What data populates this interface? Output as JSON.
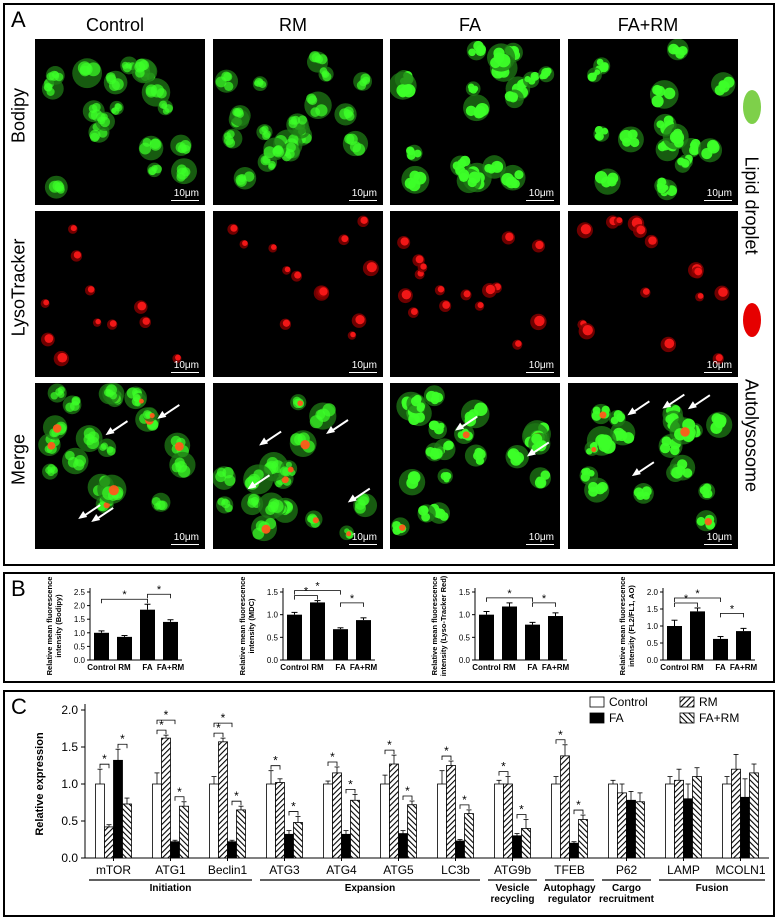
{
  "panelA": {
    "label": "A",
    "columns": [
      "Control",
      "RM",
      "FA",
      "FA+RM"
    ],
    "rows": [
      "Bodipy",
      "LysoTracker",
      "Merge"
    ],
    "scale_bar": "10μm",
    "legend": {
      "lipid": "Lipid droplet",
      "auto": "Autolysosome",
      "lipid_color": "#7ed04a",
      "auto_color": "#e60000"
    }
  },
  "panelB": {
    "label": "B",
    "charts": [
      {
        "ylabel": "Relative mean fluorescence intensity (Bodipy)"
      },
      {
        "ylabel": "Relative mean fluorescence intensity (MDC)"
      },
      {
        "ylabel": "Relative mean fluorescence intensity (Lyso-Tracker Red)"
      },
      {
        "ylabel": "Relative mean fluorescence intensity (FL2/FL1, AO)"
      }
    ]
  },
  "panelC": {
    "label": "C",
    "ylabel": "Relative expression",
    "groups": [
      {
        "name": "Initiation"
      },
      {
        "name": "Expansion"
      },
      {
        "name": "Vesicle recycling"
      },
      {
        "name": "Autophagy regulator"
      },
      {
        "name": "Cargo recruitment"
      },
      {
        "name": "Fusion"
      }
    ]
  },
  "chart_data": [
    {
      "type": "bar",
      "categories": [
        "Control",
        "RM",
        "FA",
        "FA+RM"
      ],
      "values": [
        1.0,
        0.85,
        1.85,
        1.4
      ],
      "errors": [
        0.07,
        0.05,
        0.2,
        0.08
      ],
      "ylabel": "Relative mean fluorescence intensity (Bodipy)",
      "ylim": [
        0,
        2.5
      ],
      "yticks": [
        "0.0",
        "0.5",
        "1.0",
        "1.5",
        "2.0",
        "2.5"
      ],
      "significance": [
        [
          "Control",
          "FA",
          "*"
        ],
        [
          "FA",
          "FA+RM",
          "*"
        ]
      ]
    },
    {
      "type": "bar",
      "categories": [
        "Control",
        "RM",
        "FA",
        "FA+RM"
      ],
      "values": [
        1.0,
        1.27,
        0.68,
        0.88
      ],
      "errors": [
        0.05,
        0.04,
        0.03,
        0.05
      ],
      "ylabel": "Relative mean fluorescence intensity (MDC)",
      "ylim": [
        0,
        1.5
      ],
      "yticks": [
        "0.0",
        "0.5",
        "1.0",
        "1.5"
      ],
      "significance": [
        [
          "Control",
          "RM",
          "*"
        ],
        [
          "Control",
          "FA",
          "*"
        ],
        [
          "FA",
          "FA+RM",
          "*"
        ]
      ]
    },
    {
      "type": "bar",
      "categories": [
        "Control",
        "RM",
        "FA",
        "FA+RM"
      ],
      "values": [
        1.0,
        1.18,
        0.78,
        0.97
      ],
      "errors": [
        0.07,
        0.08,
        0.05,
        0.07
      ],
      "ylabel": "Relative mean fluorescence intensity (Lyso-Tracker Red)",
      "ylim": [
        0,
        1.5
      ],
      "yticks": [
        "0.0",
        "0.5",
        "1.0",
        "1.5"
      ],
      "significance": [
        [
          "Control",
          "FA",
          "*"
        ],
        [
          "FA",
          "FA+RM",
          "*"
        ]
      ]
    },
    {
      "type": "bar",
      "categories": [
        "Control",
        "RM",
        "FA",
        "FA+RM"
      ],
      "values": [
        1.0,
        1.43,
        0.62,
        0.85
      ],
      "errors": [
        0.17,
        0.1,
        0.07,
        0.08
      ],
      "ylabel": "Relative mean fluorescence intensity (FL2/FL1, AO)",
      "ylim": [
        0,
        2.0
      ],
      "yticks": [
        "0.0",
        "0.5",
        "1.0",
        "1.5",
        "2.0"
      ],
      "significance": [
        [
          "Control",
          "RM",
          "*"
        ],
        [
          "Control",
          "FA",
          "*"
        ],
        [
          "FA",
          "FA+RM",
          "*"
        ]
      ]
    },
    {
      "type": "bar",
      "categories": [
        "mTOR",
        "ATG1",
        "Beclin1",
        "ATG3",
        "ATG4",
        "ATG5",
        "LC3b",
        "ATG9b",
        "TFEB",
        "P62",
        "LAMP",
        "MCOLN1"
      ],
      "series": [
        {
          "name": "Control",
          "values": [
            1.0,
            1.0,
            1.0,
            1.0,
            1.0,
            1.0,
            1.0,
            1.0,
            1.0,
            1.0,
            1.0,
            1.0
          ],
          "errors": [
            0.2,
            0.15,
            0.1,
            0.18,
            0.04,
            0.12,
            0.18,
            0.05,
            0.1,
            0.05,
            0.1,
            0.1
          ]
        },
        {
          "name": "RM",
          "values": [
            0.42,
            1.62,
            1.57,
            1.02,
            1.15,
            1.27,
            1.25,
            1.0,
            1.38,
            0.88,
            1.05,
            1.2
          ],
          "errors": [
            0.03,
            0.04,
            0.05,
            0.05,
            0.08,
            0.12,
            0.06,
            0.1,
            0.15,
            0.12,
            0.15,
            0.2
          ]
        },
        {
          "name": "FA",
          "values": [
            1.32,
            0.22,
            0.22,
            0.32,
            0.32,
            0.33,
            0.23,
            0.3,
            0.2,
            0.78,
            0.8,
            0.82
          ],
          "errors": [
            0.15,
            0.02,
            0.02,
            0.05,
            0.05,
            0.04,
            0.02,
            0.03,
            0.02,
            0.12,
            0.2,
            0.25
          ]
        },
        {
          "name": "FA+RM",
          "values": [
            0.73,
            0.7,
            0.65,
            0.48,
            0.78,
            0.72,
            0.6,
            0.4,
            0.52,
            0.76,
            1.1,
            1.15
          ],
          "errors": [
            0.08,
            0.06,
            0.05,
            0.08,
            0.08,
            0.05,
            0.05,
            0.12,
            0.06,
            0.12,
            0.12,
            0.12
          ]
        }
      ],
      "ylabel": "Relative expression",
      "ylim": [
        0,
        2.0
      ],
      "yticks": [
        "0.0",
        "0.5",
        "1.0",
        "1.5",
        "2.0"
      ],
      "legend": "top-right"
    }
  ]
}
